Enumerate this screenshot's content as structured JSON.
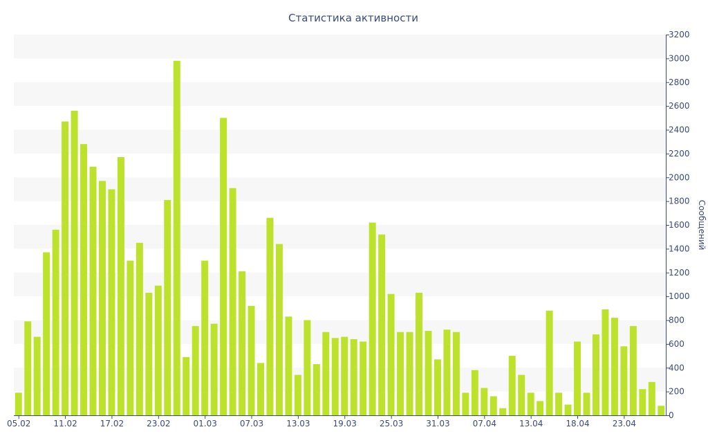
{
  "chart_data": {
    "type": "bar",
    "title": "Статистика активности",
    "xlabel": "",
    "ylabel": "Сообщений",
    "ylim": [
      0,
      3200
    ],
    "yticks": [
      0,
      200,
      400,
      600,
      800,
      1000,
      1200,
      1400,
      1600,
      1800,
      2000,
      2200,
      2400,
      2600,
      2800,
      3000,
      3200
    ],
    "x_tick_labels": [
      {
        "index": 0,
        "label": "05.02"
      },
      {
        "index": 5,
        "label": "11.02"
      },
      {
        "index": 10,
        "label": "17.02"
      },
      {
        "index": 15,
        "label": "23.02"
      },
      {
        "index": 20,
        "label": "01.03"
      },
      {
        "index": 25,
        "label": "07.03"
      },
      {
        "index": 30,
        "label": "13.03"
      },
      {
        "index": 35,
        "label": "19.03"
      },
      {
        "index": 40,
        "label": "25.03"
      },
      {
        "index": 45,
        "label": "31.03"
      },
      {
        "index": 50,
        "label": "07.04"
      },
      {
        "index": 55,
        "label": "13.04"
      },
      {
        "index": 60,
        "label": "18.04"
      },
      {
        "index": 65,
        "label": "23.04"
      }
    ],
    "values": [
      190,
      790,
      660,
      1370,
      1560,
      2470,
      2560,
      2280,
      2090,
      1970,
      1900,
      2170,
      1300,
      1450,
      1030,
      1090,
      1810,
      2980,
      490,
      750,
      1300,
      770,
      2500,
      1910,
      1210,
      920,
      440,
      1660,
      1440,
      830,
      340,
      800,
      430,
      700,
      650,
      660,
      640,
      620,
      1620,
      1520,
      1020,
      700,
      700,
      1030,
      710,
      470,
      720,
      700,
      190,
      380,
      230,
      160,
      60,
      500,
      340,
      190,
      120,
      880,
      190,
      90,
      620,
      190,
      680,
      890,
      820,
      580,
      750,
      220,
      280,
      80
    ],
    "grid": "horizontal-bands",
    "yaxis_position": "right",
    "colors": {
      "bar": "#bde22c",
      "band": "#f7f7f7",
      "text": "#3a4a7a",
      "axis": "#3a4a7a"
    }
  }
}
